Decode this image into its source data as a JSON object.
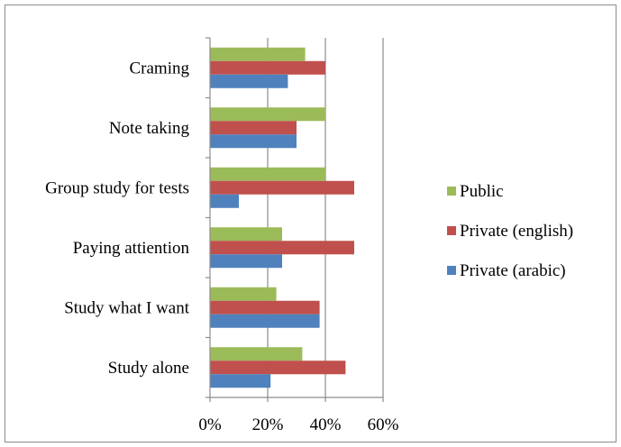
{
  "chart_data": {
    "type": "bar",
    "orientation": "horizontal",
    "title": "",
    "xlabel": "",
    "ylabel": "",
    "categories": [
      "Craming",
      "Note taking",
      "Group study for tests",
      "Paying attiention",
      "Study what I want",
      "Study alone"
    ],
    "series": [
      {
        "name": "Public",
        "color": "#9BBB59",
        "values": [
          33,
          40,
          40,
          25,
          23,
          32
        ]
      },
      {
        "name": "Private (english)",
        "color": "#C0504D",
        "values": [
          40,
          30,
          50,
          50,
          38,
          47
        ]
      },
      {
        "name": "Private (arabic)",
        "color": "#4F81BD",
        "values": [
          27,
          30,
          10,
          25,
          38,
          21
        ]
      }
    ],
    "xlim": [
      0,
      60
    ],
    "xticks": [
      "0%",
      "20%",
      "40%",
      "60%"
    ],
    "grid": "vertical",
    "legend_position": "right"
  }
}
